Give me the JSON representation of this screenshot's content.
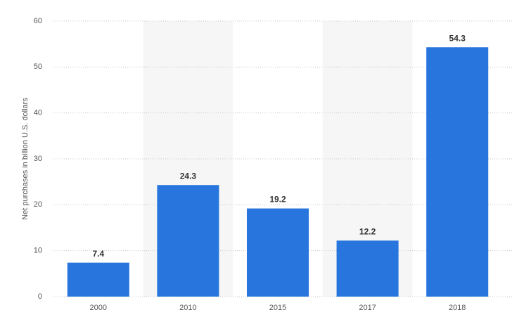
{
  "chart_data": {
    "type": "bar",
    "y_label": "Net purchases in billion U.S. dollars",
    "categories": [
      "2000",
      "2010",
      "2015",
      "2017",
      "2018"
    ],
    "values": [
      7.4,
      24.3,
      19.2,
      12.2,
      54.3
    ],
    "color": "#2876dd",
    "ylim": [
      0,
      60
    ],
    "yticks": [
      0,
      10,
      20,
      30,
      40,
      50,
      60
    ],
    "grid": true,
    "value_labels_shown": true
  }
}
